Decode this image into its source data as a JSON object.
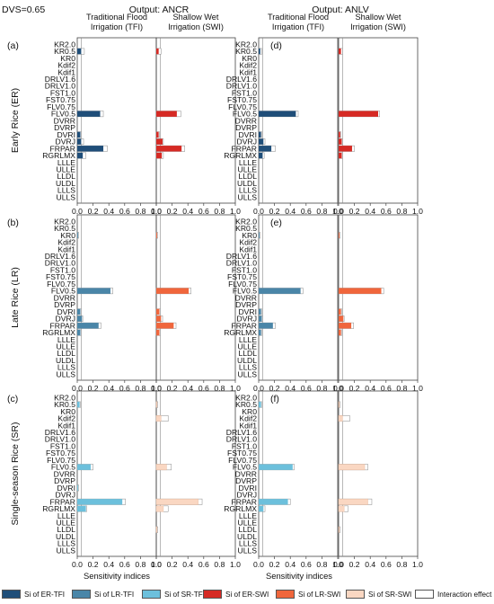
{
  "figure": {
    "dvs_label": "DVS=0.65",
    "output_titles": [
      "Output: ANCR",
      "Output: ANLV"
    ],
    "column_titles": [
      "Traditional Flood\nIrrigation (TFI)",
      "Shallow Wet\nIrrigation (SWI)"
    ],
    "row_labels": [
      "Early Rice (ER)",
      "Late Rice (LR)",
      "Single-season Rice (SR)"
    ],
    "panel_labels": [
      "(a)",
      "(d)",
      "(b)",
      "(e)",
      "(c)",
      "(f)"
    ],
    "x_axis_label": "Sensitivity indices",
    "tick_labels": [
      "0.0",
      "0.2",
      "0.4",
      "0.6",
      "0.8",
      "1.0"
    ]
  },
  "legend": {
    "items": [
      {
        "label": "Si of ER-TFI",
        "color": "#1f4e79"
      },
      {
        "label": "Si of LR-TFI",
        "color": "#4a86a8"
      },
      {
        "label": "Si of SR-TFI",
        "color": "#6cc0dc"
      },
      {
        "label": "Si of ER-SWI",
        "color": "#d62a24"
      },
      {
        "label": "Si of LR-SWI",
        "color": "#f0663c"
      },
      {
        "label": "Si of SR-SWI",
        "color": "#fad7c2"
      },
      {
        "label": "Interaction effect",
        "color": "#ffffff"
      }
    ]
  },
  "chart_data": {
    "type": "bar",
    "orientation": "horizontal",
    "categories": [
      "KR2.0",
      "KR0.5",
      "KR0",
      "Kdif2",
      "Kdif1",
      "DRLV1.6",
      "DRLV1.0",
      "FST1.0",
      "FST0.75",
      "FLV0.75",
      "FLV0.5",
      "DVRR",
      "DVRP",
      "DVRI",
      "DVRJ",
      "FRPAR",
      "RGRLMX",
      "LLLE",
      "ULLE",
      "LLDL",
      "ULDL",
      "LLLS",
      "ULLS"
    ],
    "xlim": [
      0,
      1.0
    ],
    "xticks": [
      0.0,
      0.2,
      0.4,
      0.6,
      0.8,
      1.0
    ],
    "reference_line": 0.05,
    "panels": [
      {
        "label": "(a)",
        "output": "ANCR",
        "crop": "ER",
        "TFI": {
          "color": "#1f4e79",
          "values": {
            "KR0.5": 0.05,
            "FLV0.5": 0.29,
            "DVRI": 0.04,
            "DVRJ": 0.05,
            "FRPAR": 0.33,
            "RGRLMX": 0.07
          },
          "totals": {
            "KR0.5": 0.09,
            "FLV0.5": 0.33,
            "DVRI": 0.05,
            "DVRJ": 0.08,
            "FRPAR": 0.38,
            "RGRLMX": 0.11
          }
        },
        "SWI": {
          "color": "#d62a24",
          "values": {
            "KR0.5": 0.03,
            "FLV0.5": 0.26,
            "DVRI": 0.03,
            "DVRJ": 0.08,
            "FRPAR": 0.32,
            "RGRLMX": 0.07
          },
          "totals": {
            "KR0.5": 0.06,
            "FLV0.5": 0.31,
            "DVRI": 0.04,
            "DVRJ": 0.09,
            "FRPAR": 0.36,
            "RGRLMX": 0.09
          }
        }
      },
      {
        "label": "(d)",
        "output": "ANLV",
        "crop": "ER",
        "TFI": {
          "color": "#1f4e79",
          "values": {
            "KR0.5": 0.02,
            "FLV0.5": 0.47,
            "DVRI": 0.03,
            "DVRJ": 0.06,
            "FRPAR": 0.16,
            "RGRLMX": 0.05
          },
          "totals": {
            "KR0.5": 0.04,
            "FLV0.5": 0.5,
            "DVRI": 0.04,
            "DVRJ": 0.08,
            "FRPAR": 0.21,
            "RGRLMX": 0.07
          }
        },
        "SWI": {
          "color": "#d62a24",
          "values": {
            "KR0.5": 0.03,
            "FLV0.5": 0.5,
            "DVRI": 0.02,
            "DVRJ": 0.04,
            "FRPAR": 0.17,
            "RGRLMX": 0.04
          },
          "totals": {
            "KR0.5": 0.05,
            "FLV0.5": 0.52,
            "DVRI": 0.03,
            "DVRJ": 0.05,
            "FRPAR": 0.2,
            "RGRLMX": 0.05
          }
        }
      },
      {
        "label": "(b)",
        "output": "ANCR",
        "crop": "LR",
        "TFI": {
          "color": "#4a86a8",
          "values": {
            "KR0": 0.01,
            "FLV0.5": 0.42,
            "DVRI": 0.04,
            "DVRJ": 0.06,
            "FRPAR": 0.27,
            "RGRLMX": 0.04
          },
          "totals": {
            "KR0": 0.02,
            "FLV0.5": 0.45,
            "DVRI": 0.05,
            "DVRJ": 0.07,
            "FRPAR": 0.3,
            "RGRLMX": 0.05
          }
        },
        "SWI": {
          "color": "#f0663c",
          "values": {
            "KR0": 0.01,
            "FLV0.5": 0.41,
            "DVRI": 0.04,
            "DVRJ": 0.06,
            "FRPAR": 0.22,
            "RGRLMX": 0.04
          },
          "totals": {
            "KR0": 0.02,
            "FLV0.5": 0.44,
            "DVRI": 0.05,
            "DVRJ": 0.08,
            "FRPAR": 0.25,
            "RGRLMX": 0.05
          }
        }
      },
      {
        "label": "(e)",
        "output": "ANLV",
        "crop": "LR",
        "TFI": {
          "color": "#4a86a8",
          "values": {
            "KR0": 0.01,
            "FLV0.5": 0.53,
            "DVRI": 0.03,
            "DVRJ": 0.04,
            "FRPAR": 0.18,
            "RGRLMX": 0.03
          },
          "totals": {
            "KR0": 0.02,
            "FLV0.5": 0.56,
            "DVRI": 0.04,
            "DVRJ": 0.05,
            "FRPAR": 0.21,
            "RGRLMX": 0.04
          }
        },
        "SWI": {
          "color": "#f0663c",
          "values": {
            "KR0": 0.01,
            "FLV0.5": 0.54,
            "DVRI": 0.03,
            "DVRJ": 0.06,
            "FRPAR": 0.16,
            "RGRLMX": 0.03
          },
          "totals": {
            "KR0": 0.02,
            "FLV0.5": 0.57,
            "DVRI": 0.04,
            "DVRJ": 0.07,
            "FRPAR": 0.19,
            "RGRLMX": 0.04
          }
        }
      },
      {
        "label": "(c)",
        "output": "ANCR",
        "crop": "SR",
        "TFI": {
          "color": "#6cc0dc",
          "values": {
            "KR0.5": 0.03,
            "FLV0.5": 0.17,
            "DVRI": 0.01,
            "FRPAR": 0.57,
            "RGRLMX": 0.11
          },
          "totals": {
            "KR0.5": 0.04,
            "FLV0.5": 0.2,
            "DVRI": 0.02,
            "FRPAR": 0.61,
            "RGRLMX": 0.12
          }
        },
        "SWI": {
          "color": "#fad7c2",
          "values": {
            "KR0.5": 0.01,
            "Kdif2": 0.06,
            "FLV0.5": 0.13,
            "FRPAR": 0.53,
            "RGRLMX": 0.09,
            "LLDL": 0.01
          },
          "totals": {
            "KR0.5": 0.02,
            "Kdif2": 0.15,
            "FLV0.5": 0.19,
            "FRPAR": 0.58,
            "RGRLMX": 0.15,
            "LLDL": 0.02
          }
        }
      },
      {
        "label": "(f)",
        "output": "ANLV",
        "crop": "SR",
        "TFI": {
          "color": "#6cc0dc",
          "values": {
            "KR0.5": 0.03,
            "FLV0.5": 0.43,
            "FRPAR": 0.37,
            "RGRLMX": 0.06
          },
          "totals": {
            "KR0.5": 0.04,
            "FLV0.5": 0.45,
            "FRPAR": 0.4,
            "RGRLMX": 0.08
          }
        },
        "SWI": {
          "color": "#fad7c2",
          "values": {
            "KR0.5": 0.01,
            "Kdif2": 0.05,
            "FLV0.5": 0.33,
            "FRPAR": 0.37,
            "RGRLMX": 0.07,
            "LLDL": 0.01
          },
          "totals": {
            "KR0.5": 0.02,
            "Kdif2": 0.14,
            "FLV0.5": 0.37,
            "FRPAR": 0.42,
            "RGRLMX": 0.12,
            "LLDL": 0.02
          }
        }
      }
    ]
  }
}
